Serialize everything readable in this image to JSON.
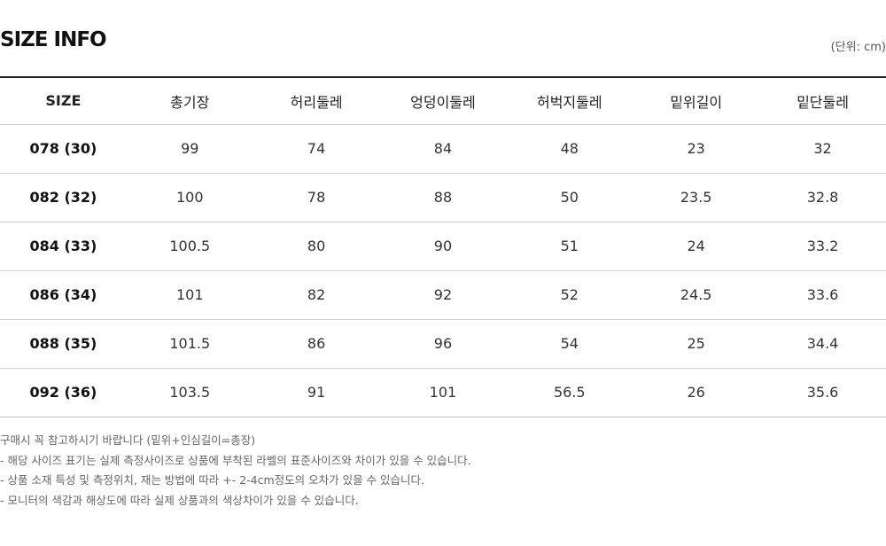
{
  "title": "SIZE INFO",
  "unit": "(단위: cm)",
  "table": {
    "headers": [
      "SIZE",
      "총기장",
      "허리둘레",
      "엉덩이둘레",
      "허벅지둘레",
      "밑위길이",
      "밑단둘레"
    ],
    "rows": [
      [
        "078 (30)",
        "99",
        "74",
        "84",
        "48",
        "23",
        "32"
      ],
      [
        "082 (32)",
        "100",
        "78",
        "88",
        "50",
        "23.5",
        "32.8"
      ],
      [
        "084 (33)",
        "100.5",
        "80",
        "90",
        "51",
        "24",
        "33.2"
      ],
      [
        "086 (34)",
        "101",
        "82",
        "92",
        "52",
        "24.5",
        "33.6"
      ],
      [
        "088 (35)",
        "101.5",
        "86",
        "96",
        "54",
        "25",
        "34.4"
      ],
      [
        "092 (36)",
        "103.5",
        "91",
        "101",
        "56.5",
        "26",
        "35.6"
      ]
    ]
  },
  "notes": [
    "구매시 꼭 참고하시기 바랍니다 (밑위+인심길이=총장)",
    "- 해당 사이즈 표기는 실제 측정사이즈로 상품에 부착된 라벨의 표준사이즈와 차이가 있을 수 있습니다.",
    "- 상품 소재 특성 및 측정위치, 재는 방법에 따라 +- 2-4cm정도의 오차가 있을 수 있습니다.",
    "- 모니터의 색감과 해상도에 따라 실제 상품과의 색상차이가 있을 수 있습니다."
  ]
}
